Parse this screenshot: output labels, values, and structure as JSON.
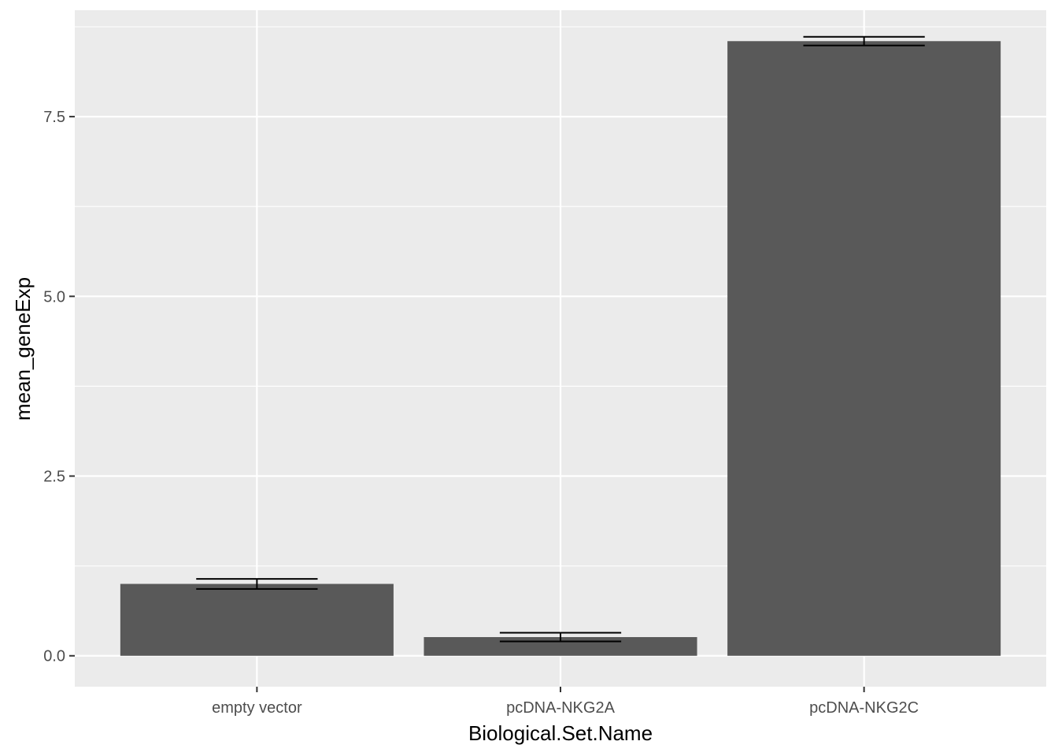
{
  "chart_data": {
    "type": "bar",
    "title": "",
    "xlabel": "Biological.Set.Name",
    "ylabel": "mean_geneExp",
    "categories": [
      "empty vector",
      "pcDNA-NKG2A",
      "pcDNA-NKG2C"
    ],
    "values": [
      1.0,
      0.26,
      8.55
    ],
    "error_bars": [
      {
        "low": 0.93,
        "high": 1.07
      },
      {
        "low": 0.2,
        "high": 0.32
      },
      {
        "low": 8.49,
        "high": 8.61
      }
    ],
    "yticks": [
      0.0,
      2.5,
      5.0,
      7.5
    ],
    "ytick_labels": [
      "0.0",
      "2.5",
      "5.0",
      "7.5"
    ],
    "ylim": [
      -0.43,
      8.98
    ],
    "grid": true,
    "legend": "none",
    "colors": {
      "panel_background": "#ebebeb",
      "grid": "#ffffff",
      "bar_fill": "#595959",
      "error_bar": "#000000",
      "tick": "#333333",
      "tick_label": "#4d4d4d",
      "axis_title": "#000000"
    }
  }
}
